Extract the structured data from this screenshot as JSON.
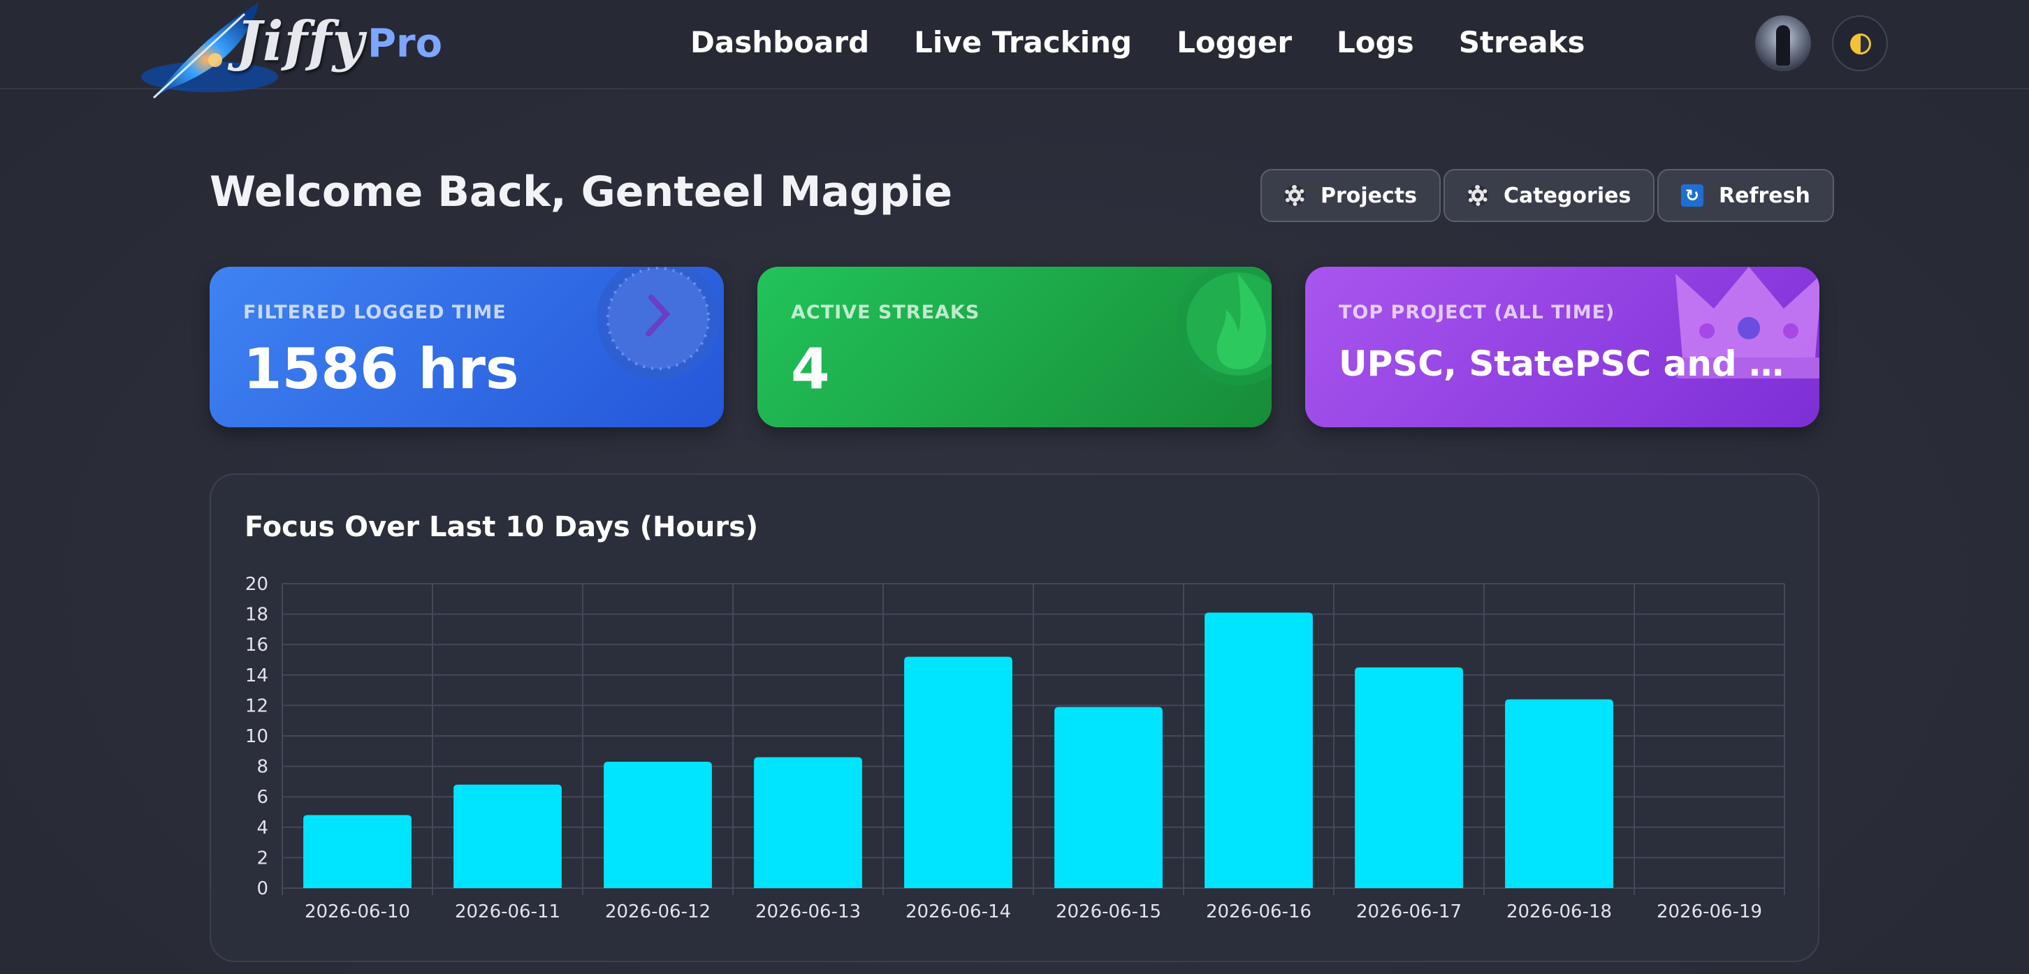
{
  "header": {
    "logo_text": "Jiffy",
    "logo_pro": "Pro",
    "nav": [
      "Dashboard",
      "Live Tracking",
      "Logger",
      "Logs",
      "Streaks"
    ]
  },
  "welcome": "Welcome Back, Genteel Magpie",
  "actions": {
    "projects": "Projects",
    "categories": "Categories",
    "refresh": "Refresh"
  },
  "stats": {
    "logged_time_label": "FILTERED LOGGED TIME",
    "logged_time_value": "1586 hrs",
    "streaks_label": "ACTIVE STREAKS",
    "streaks_value": "4",
    "top_project_label": "TOP PROJECT (ALL TIME)",
    "top_project_value": "UPSC, StatePSC and Oth..."
  },
  "colors": {
    "bar": "#00e5ff",
    "blue_card": "#3f83f2",
    "green_card": "#22c35a",
    "purple_card": "#a955ef"
  },
  "chart_data": {
    "type": "bar",
    "title": "Focus Over Last 10 Days (Hours)",
    "categories": [
      "2026-06-10",
      "2026-06-11",
      "2026-06-12",
      "2026-06-13",
      "2026-06-14",
      "2026-06-15",
      "2026-06-16",
      "2026-06-17",
      "2026-06-18",
      "2026-06-19"
    ],
    "values": [
      4.8,
      6.8,
      8.3,
      8.6,
      15.2,
      11.9,
      18.1,
      14.5,
      12.4,
      0
    ],
    "ylim": [
      0,
      20
    ],
    "yticks": [
      0,
      2,
      4,
      6,
      8,
      10,
      12,
      14,
      16,
      18,
      20
    ],
    "grid": true
  }
}
